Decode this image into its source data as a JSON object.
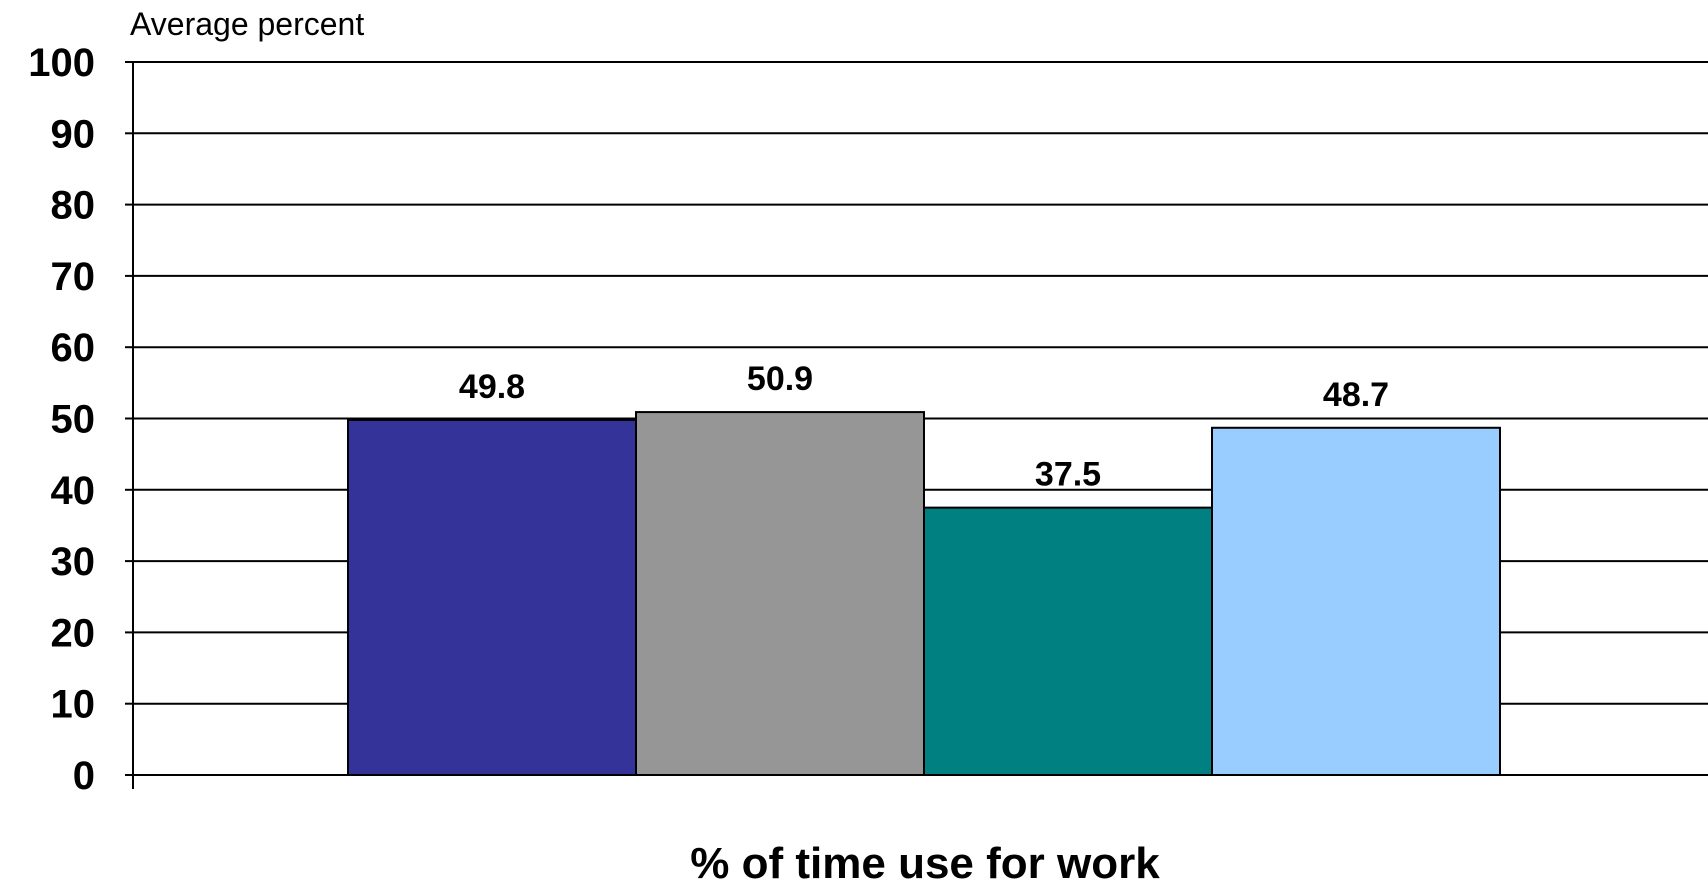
{
  "chart_data": {
    "type": "bar",
    "title": "",
    "ylabel": "Average percent",
    "xlabel": "% of time use for work",
    "ylim": [
      0,
      100
    ],
    "yticks": [
      0,
      10,
      20,
      30,
      40,
      50,
      60,
      70,
      80,
      90,
      100
    ],
    "grid": true,
    "categories": [
      "",
      "",
      "",
      ""
    ],
    "values": [
      49.8,
      50.9,
      37.5,
      48.7
    ],
    "value_labels": [
      "49.8",
      "50.9",
      "37.5",
      "48.7"
    ],
    "colors": [
      "#333399",
      "#969696",
      "#008080",
      "#99ccff"
    ]
  }
}
